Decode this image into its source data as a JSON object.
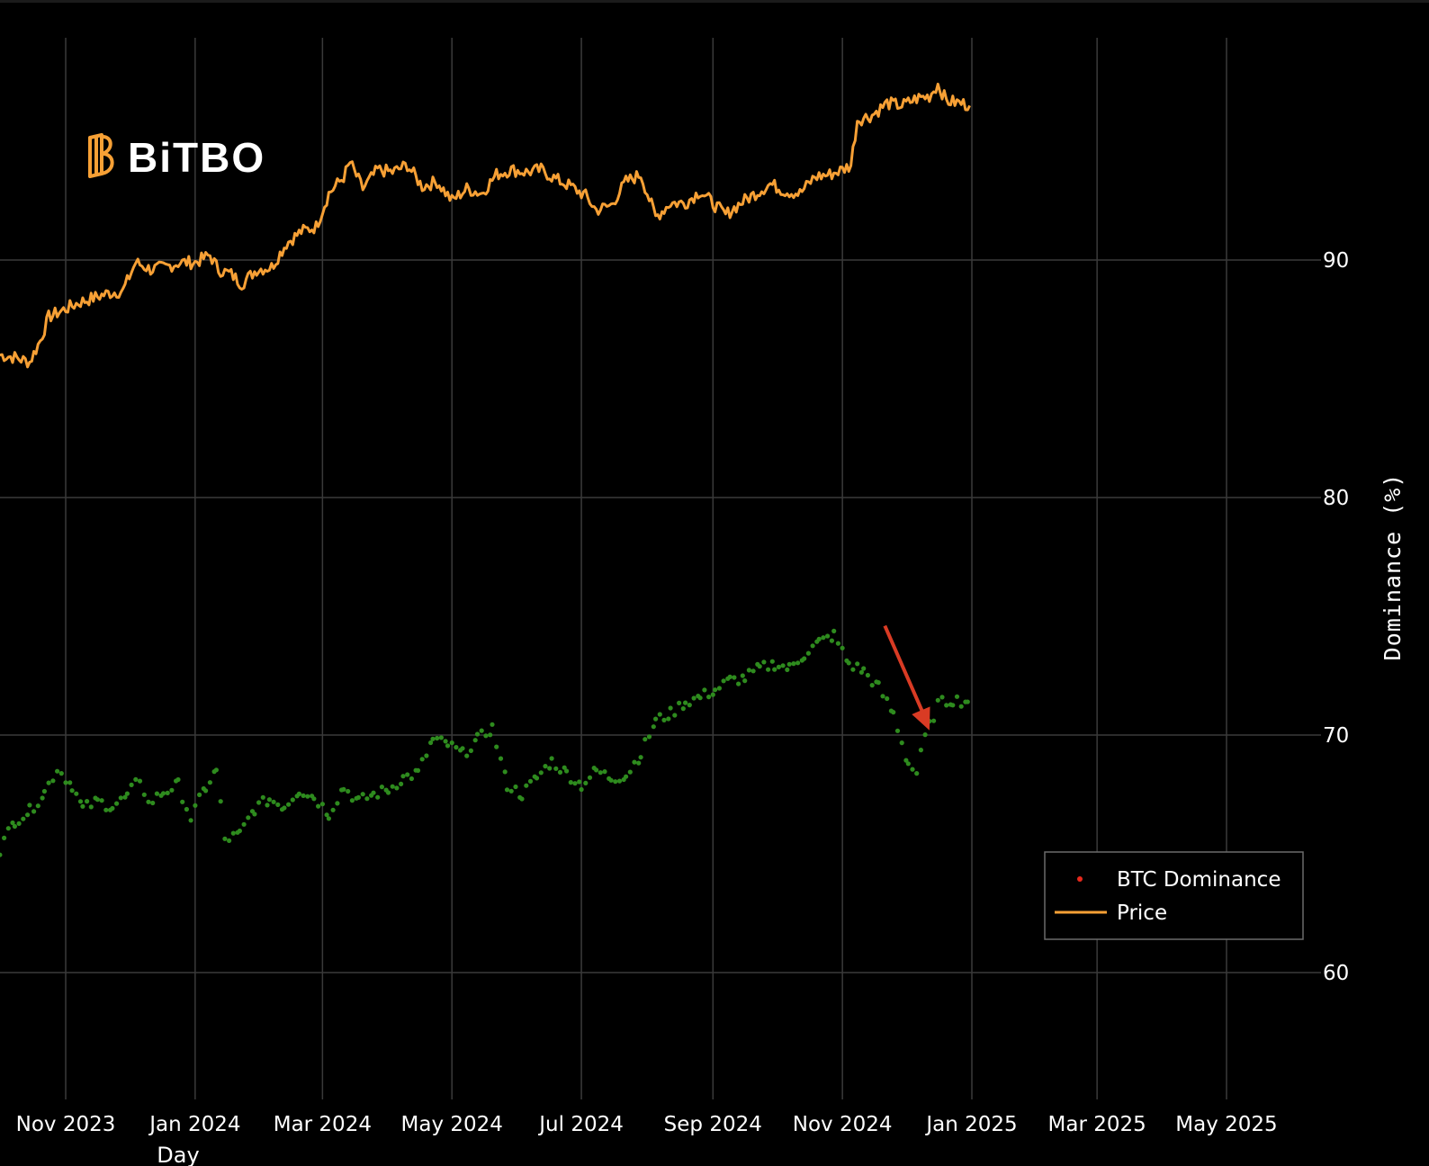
{
  "logo": {
    "text": "BiTBO",
    "brand_color": "#f7a035"
  },
  "chart_data": {
    "type": "line",
    "xlabel": "Day",
    "ylabel": "Dominance (%)",
    "x_range": [
      "2023-09-28",
      "2025-06-20"
    ],
    "y2_range": [
      55,
      100
    ],
    "x_ticks": [
      "Nov 2023",
      "Jan 2024",
      "Mar 2024",
      "May 2024",
      "Jul 2024",
      "Sep 2024",
      "Nov 2024",
      "Jan 2025",
      "Mar 2025",
      "May 2025"
    ],
    "x_tick_dates": [
      "2023-11-01",
      "2024-01-01",
      "2024-03-01",
      "2024-05-01",
      "2024-07-01",
      "2024-09-01",
      "2024-11-01",
      "2025-01-01",
      "2025-03-01",
      "2025-05-01"
    ],
    "y_ticks": [
      90,
      80,
      70,
      60
    ],
    "grid": true,
    "legend_position": "bottom-right",
    "colors": {
      "price": "#f7a035",
      "dominance": "#2e8b1e",
      "dominance_legend": "#e8291c",
      "arrow": "#d93b24"
    },
    "series": [
      {
        "name": "BTC Dominance",
        "type": "scatter",
        "axis": "right",
        "points": [
          [
            "2023-10-01",
            65.2
          ],
          [
            "2023-10-08",
            66.4
          ],
          [
            "2023-10-15",
            66.8
          ],
          [
            "2023-10-22",
            67.6
          ],
          [
            "2023-10-28",
            68.6
          ],
          [
            "2023-11-04",
            67.9
          ],
          [
            "2023-11-09",
            66.9
          ],
          [
            "2023-11-16",
            67.2
          ],
          [
            "2023-11-23",
            67.0
          ],
          [
            "2023-11-30",
            67.4
          ],
          [
            "2023-12-06",
            68.2
          ],
          [
            "2023-12-10",
            67.1
          ],
          [
            "2023-12-17",
            67.6
          ],
          [
            "2023-12-24",
            67.9
          ],
          [
            "2023-12-30",
            66.5
          ],
          [
            "2024-01-06",
            67.8
          ],
          [
            "2024-01-11",
            68.5
          ],
          [
            "2024-01-15",
            65.6
          ],
          [
            "2024-01-22",
            65.8
          ],
          [
            "2024-01-29",
            66.9
          ],
          [
            "2024-02-05",
            67.3
          ],
          [
            "2024-02-12",
            67.0
          ],
          [
            "2024-02-19",
            67.7
          ],
          [
            "2024-02-26",
            67.4
          ],
          [
            "2024-03-04",
            66.7
          ],
          [
            "2024-03-11",
            67.8
          ],
          [
            "2024-03-18",
            67.2
          ],
          [
            "2024-03-25",
            67.5
          ],
          [
            "2024-04-01",
            67.7
          ],
          [
            "2024-04-08",
            68.2
          ],
          [
            "2024-04-15",
            68.4
          ],
          [
            "2024-04-22",
            69.8
          ],
          [
            "2024-04-29",
            69.6
          ],
          [
            "2024-05-06",
            69.2
          ],
          [
            "2024-05-13",
            69.8
          ],
          [
            "2024-05-20",
            70.3
          ],
          [
            "2024-05-27",
            67.9
          ],
          [
            "2024-06-03",
            67.5
          ],
          [
            "2024-06-10",
            68.2
          ],
          [
            "2024-06-17",
            68.9
          ],
          [
            "2024-06-24",
            68.4
          ],
          [
            "2024-07-01",
            67.9
          ],
          [
            "2024-07-08",
            68.5
          ],
          [
            "2024-07-15",
            68.2
          ],
          [
            "2024-07-22",
            68.3
          ],
          [
            "2024-07-29",
            69.2
          ],
          [
            "2024-08-05",
            70.6
          ],
          [
            "2024-08-12",
            70.9
          ],
          [
            "2024-08-19",
            71.4
          ],
          [
            "2024-08-26",
            71.6
          ],
          [
            "2024-09-02",
            71.9
          ],
          [
            "2024-09-09",
            72.3
          ],
          [
            "2024-09-16",
            72.4
          ],
          [
            "2024-09-23",
            72.8
          ],
          [
            "2024-09-30",
            73.0
          ],
          [
            "2024-10-07",
            72.8
          ],
          [
            "2024-10-14",
            73.4
          ],
          [
            "2024-10-21",
            73.9
          ],
          [
            "2024-10-28",
            74.2
          ],
          [
            "2024-11-04",
            73.0
          ],
          [
            "2024-11-11",
            72.7
          ],
          [
            "2024-11-18",
            72.0
          ],
          [
            "2024-11-25",
            70.9
          ],
          [
            "2024-12-02",
            68.8
          ],
          [
            "2024-12-06",
            68.4
          ],
          [
            "2024-12-10",
            69.9
          ],
          [
            "2024-12-16",
            71.3
          ],
          [
            "2024-12-23",
            71.5
          ],
          [
            "2024-12-30",
            71.4
          ]
        ]
      },
      {
        "name": "Price",
        "type": "line",
        "axis": "left",
        "points": [
          [
            "2023-10-01",
            86.0
          ],
          [
            "2023-10-08",
            85.9
          ],
          [
            "2023-10-15",
            85.7
          ],
          [
            "2023-10-20",
            86.6
          ],
          [
            "2023-10-24",
            87.6
          ],
          [
            "2023-10-31",
            87.9
          ],
          [
            "2023-11-07",
            88.2
          ],
          [
            "2023-11-14",
            88.4
          ],
          [
            "2023-11-21",
            88.6
          ],
          [
            "2023-11-28",
            88.7
          ],
          [
            "2023-12-04",
            89.9
          ],
          [
            "2023-12-11",
            89.6
          ],
          [
            "2023-12-18",
            89.7
          ],
          [
            "2023-12-25",
            89.9
          ],
          [
            "2024-01-01",
            89.9
          ],
          [
            "2024-01-08",
            90.2
          ],
          [
            "2024-01-12",
            89.6
          ],
          [
            "2024-01-18",
            89.4
          ],
          [
            "2024-01-23",
            89.0
          ],
          [
            "2024-01-30",
            89.6
          ],
          [
            "2024-02-06",
            89.7
          ],
          [
            "2024-02-13",
            90.7
          ],
          [
            "2024-02-20",
            91.2
          ],
          [
            "2024-02-27",
            91.4
          ],
          [
            "2024-03-04",
            92.8
          ],
          [
            "2024-03-11",
            93.5
          ],
          [
            "2024-03-14",
            94.1
          ],
          [
            "2024-03-20",
            93.0
          ],
          [
            "2024-03-27",
            93.8
          ],
          [
            "2024-04-03",
            93.7
          ],
          [
            "2024-04-10",
            94.0
          ],
          [
            "2024-04-17",
            93.1
          ],
          [
            "2024-04-24",
            93.3
          ],
          [
            "2024-05-01",
            92.5
          ],
          [
            "2024-05-08",
            93.0
          ],
          [
            "2024-05-15",
            92.8
          ],
          [
            "2024-05-22",
            93.6
          ],
          [
            "2024-05-29",
            93.8
          ],
          [
            "2024-06-05",
            93.7
          ],
          [
            "2024-06-12",
            93.8
          ],
          [
            "2024-06-19",
            93.4
          ],
          [
            "2024-06-26",
            93.1
          ],
          [
            "2024-07-03",
            92.7
          ],
          [
            "2024-07-08",
            92.1
          ],
          [
            "2024-07-15",
            92.3
          ],
          [
            "2024-07-22",
            93.3
          ],
          [
            "2024-07-29",
            93.6
          ],
          [
            "2024-08-05",
            91.8
          ],
          [
            "2024-08-12",
            92.4
          ],
          [
            "2024-08-19",
            92.4
          ],
          [
            "2024-08-26",
            92.9
          ],
          [
            "2024-09-02",
            92.3
          ],
          [
            "2024-09-07",
            91.9
          ],
          [
            "2024-09-14",
            92.4
          ],
          [
            "2024-09-21",
            92.8
          ],
          [
            "2024-09-28",
            93.2
          ],
          [
            "2024-10-05",
            92.9
          ],
          [
            "2024-10-12",
            92.8
          ],
          [
            "2024-10-19",
            93.5
          ],
          [
            "2024-10-26",
            93.6
          ],
          [
            "2024-11-01",
            93.8
          ],
          [
            "2024-11-05",
            94.0
          ],
          [
            "2024-11-08",
            95.9
          ],
          [
            "2024-11-15",
            96.1
          ],
          [
            "2024-11-22",
            96.6
          ],
          [
            "2024-11-29",
            96.5
          ],
          [
            "2024-12-06",
            96.8
          ],
          [
            "2024-12-12",
            96.9
          ],
          [
            "2024-12-16",
            97.4
          ],
          [
            "2024-12-20",
            96.7
          ],
          [
            "2024-12-27",
            96.6
          ],
          [
            "2024-12-31",
            96.5
          ]
        ]
      }
    ]
  }
}
